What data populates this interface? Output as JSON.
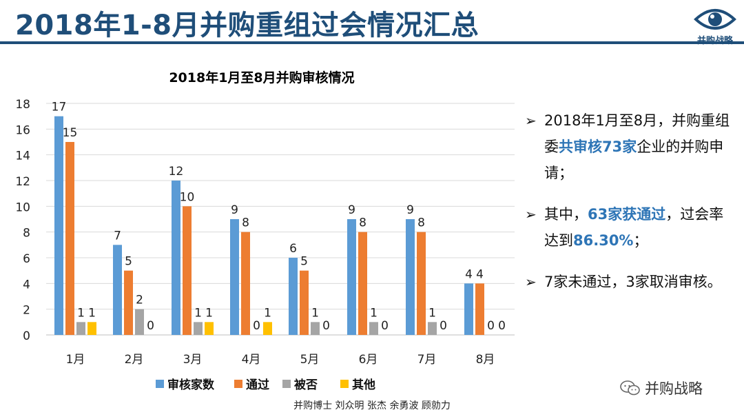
{
  "slide": {
    "title": "2018年1-8月并购重组过会情况汇总",
    "logo_text": "并购战略",
    "wechat_label": "并购战略",
    "credit": "并购博士 刘众明 张杰 余勇波 顾勍力"
  },
  "colors": {
    "title": "#1f4e79",
    "highlight": "#2e75b6",
    "series_1": "#5b9bd5",
    "series_2": "#ed7d31",
    "series_3": "#a5a5a5",
    "series_4": "#ffc000"
  },
  "chart_data": {
    "type": "bar",
    "title": "2018年1月至8月并购审核情况",
    "categories": [
      "1月",
      "2月",
      "3月",
      "4月",
      "5月",
      "6月",
      "7月",
      "8月"
    ],
    "series": [
      {
        "name": "审核家数",
        "values": [
          17,
          7,
          12,
          9,
          6,
          9,
          9,
          4
        ]
      },
      {
        "name": "通过",
        "values": [
          15,
          5,
          10,
          8,
          5,
          8,
          8,
          4
        ]
      },
      {
        "name": "被否",
        "values": [
          1,
          2,
          1,
          0,
          1,
          1,
          1,
          0
        ]
      },
      {
        "name": "其他",
        "values": [
          1,
          0,
          1,
          1,
          0,
          0,
          0,
          0
        ]
      }
    ],
    "yticks": [
      "0",
      "2",
      "4",
      "6",
      "8",
      "10",
      "12",
      "14",
      "16",
      "18"
    ],
    "ylim": [
      0,
      18
    ],
    "grid": true,
    "legend": "bottom"
  },
  "bullets": [
    {
      "segments": [
        {
          "text": "2018年1月至8月，并购重组委",
          "hl": false
        },
        {
          "text": "共审核73家",
          "hl": true
        },
        {
          "text": "企业的并购申请；",
          "hl": false
        }
      ]
    },
    {
      "segments": [
        {
          "text": "其中，",
          "hl": false
        },
        {
          "text": "63家获通过",
          "hl": true
        },
        {
          "text": "，过会率达到",
          "hl": false
        },
        {
          "text": "86.30%",
          "hl": true
        },
        {
          "text": "；",
          "hl": false
        }
      ]
    },
    {
      "segments": [
        {
          "text": "7家未通过，3家取消审核。",
          "hl": false
        }
      ]
    }
  ]
}
